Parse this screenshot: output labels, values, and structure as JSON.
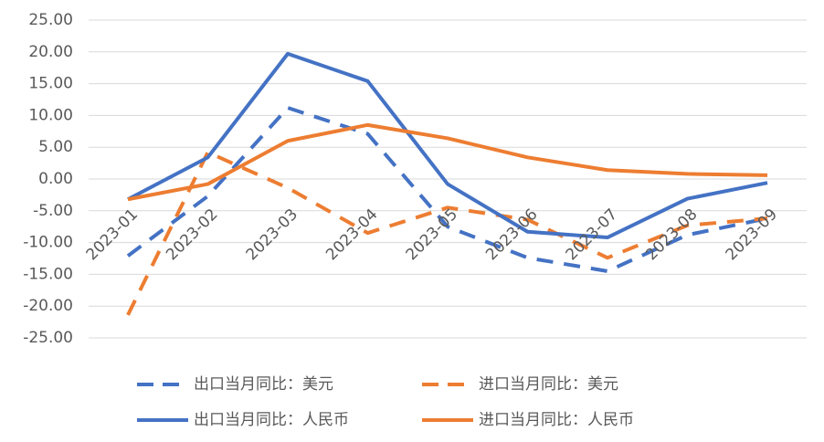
{
  "chart_data": {
    "type": "line",
    "categories": [
      "2023-01",
      "2023-02",
      "2023-03",
      "2023-04",
      "2023-05",
      "2023-06",
      "2023-07",
      "2023-08",
      "2023-09"
    ],
    "series": [
      {
        "name": "出口当月同比：美元",
        "color": "#4472c4",
        "dash": true,
        "values": [
          -12.1,
          -2.7,
          11.2,
          7.1,
          -7.5,
          -12.4,
          -14.5,
          -8.8,
          -6.2
        ]
      },
      {
        "name": "进口当月同比：美元",
        "color": "#ed7d31",
        "dash": true,
        "values": [
          -21.4,
          4.2,
          -1.4,
          -8.5,
          -4.5,
          -6.4,
          -12.4,
          -7.3,
          -6.2
        ]
      },
      {
        "name": "出口当月同比：人民币",
        "color": "#4472c4",
        "dash": false,
        "values": [
          -3.2,
          3.4,
          19.7,
          15.4,
          -0.8,
          -8.3,
          -9.2,
          -3.1,
          -0.6
        ]
      },
      {
        "name": "进口当月同比：人民币",
        "color": "#ed7d31",
        "dash": false,
        "values": [
          -3.2,
          -0.8,
          6.0,
          8.5,
          6.4,
          3.4,
          1.4,
          0.8,
          0.6
        ]
      }
    ],
    "ylim": [
      -25,
      25
    ],
    "yticks": [
      {
        "value": 25,
        "label": "25.00"
      },
      {
        "value": 20,
        "label": "20.00"
      },
      {
        "value": 15,
        "label": "15.00"
      },
      {
        "value": 10,
        "label": "10.00"
      },
      {
        "value": 5,
        "label": "5.00"
      },
      {
        "value": 0,
        "label": "0.00"
      },
      {
        "value": -5,
        "label": "-5.00"
      },
      {
        "value": -10,
        "label": "-10.00"
      },
      {
        "value": -15,
        "label": "-15.00"
      },
      {
        "value": -20,
        "label": "-20.00"
      },
      {
        "value": -25,
        "label": "-25.00"
      }
    ],
    "grid": true
  }
}
